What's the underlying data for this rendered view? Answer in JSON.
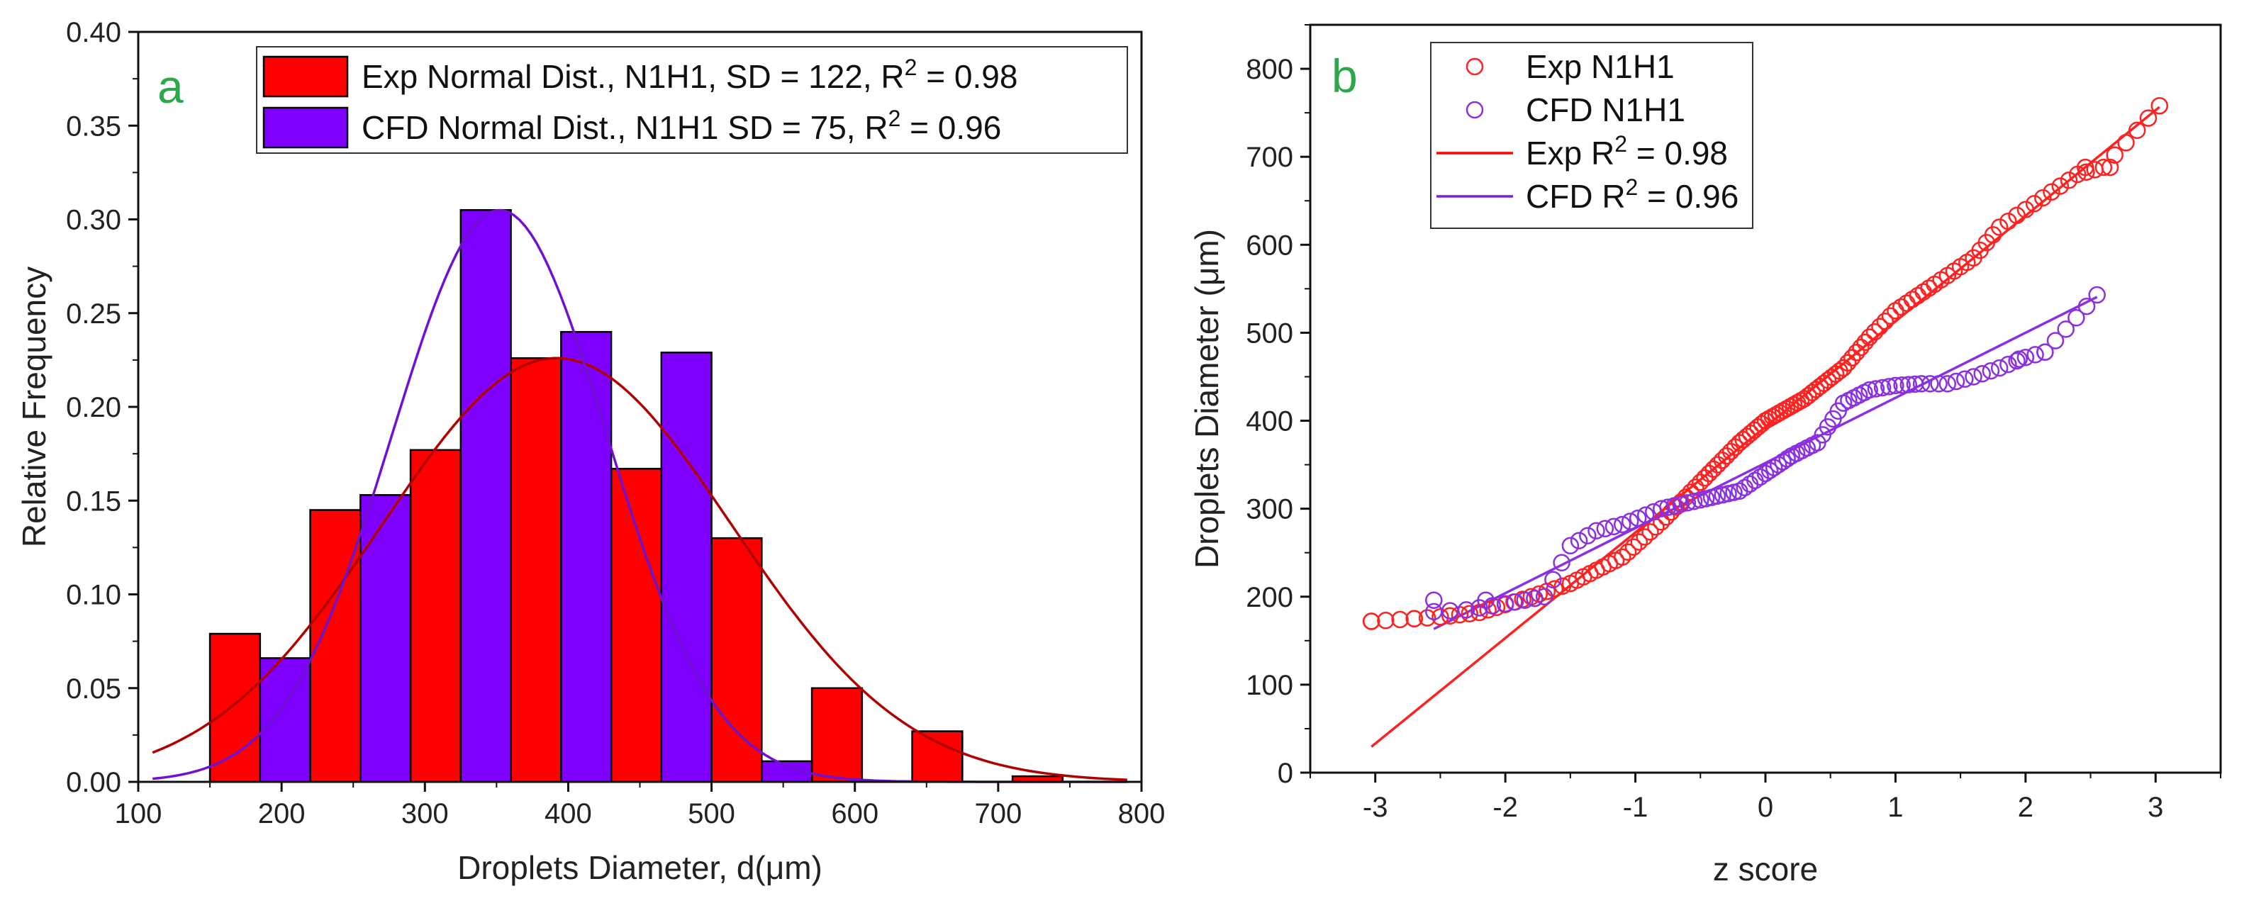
{
  "chart_data": [
    {
      "type": "bar",
      "panel_label": "a",
      "title": "",
      "xlabel": "Droplets Diameter, d(μm)",
      "ylabel": "Relative Frequency",
      "xlim": [
        100,
        800
      ],
      "ylim": [
        0,
        0.4
      ],
      "xticks": [
        "100",
        "200",
        "300",
        "400",
        "500",
        "600",
        "700",
        "800"
      ],
      "yticks": [
        "0.00",
        "0.05",
        "0.10",
        "0.15",
        "0.20",
        "0.25",
        "0.30",
        "0.35",
        "0.40"
      ],
      "bin_width": 35,
      "series": [
        {
          "name": "Exp",
          "color": "#ff0000",
          "bins": [
            {
              "start": 150,
              "value": 0.079
            },
            {
              "start": 220,
              "value": 0.145
            },
            {
              "start": 290,
              "value": 0.177
            },
            {
              "start": 360,
              "value": 0.226
            },
            {
              "start": 430,
              "value": 0.167
            },
            {
              "start": 500,
              "value": 0.13
            },
            {
              "start": 570,
              "value": 0.05
            },
            {
              "start": 640,
              "value": 0.027
            },
            {
              "start": 710,
              "value": 0.003
            }
          ]
        },
        {
          "name": "CFD",
          "color": "#8000ff",
          "bins": [
            {
              "start": 185,
              "value": 0.066
            },
            {
              "start": 255,
              "value": 0.153
            },
            {
              "start": 325,
              "value": 0.305
            },
            {
              "start": 395,
              "value": 0.24
            },
            {
              "start": 465,
              "value": 0.229
            },
            {
              "start": 535,
              "value": 0.011
            }
          ]
        }
      ],
      "fits": [
        {
          "name": "Exp normal fit",
          "color": "#b00000",
          "mean": 392,
          "sd": 122,
          "peak": 0.226
        },
        {
          "name": "CFD normal fit",
          "color": "#7010d0",
          "mean": 352,
          "sd": 75,
          "peak": 0.305
        }
      ],
      "legend": [
        {
          "label": "Exp Normal Dist., N1H1, SD = 122, R",
          "sup": "2",
          "tail": " = 0.98",
          "color": "#ff0000"
        },
        {
          "label": "CFD Normal Dist., N1H1 SD = 75, R",
          "sup": "2",
          "tail": " = 0.96",
          "color": "#8000ff"
        }
      ]
    },
    {
      "type": "scatter",
      "panel_label": "b",
      "title": "",
      "xlabel": "z score",
      "ylabel": "Droplets Diameter (μm)",
      "xlim": [
        -3.5,
        3.5
      ],
      "ylim": [
        0,
        850
      ],
      "xticks": [
        "-3",
        "-2",
        "-1",
        "0",
        "1",
        "2",
        "3"
      ],
      "yticks": [
        "0",
        "100",
        "200",
        "300",
        "400",
        "500",
        "600",
        "700",
        "800"
      ],
      "series": [
        {
          "name": "Exp N1H1",
          "color": "#ff2020",
          "marker": "open-circle",
          "line": {
            "slope": 120,
            "intercept": 393,
            "x_range": [
              -3.03,
              3.03
            ]
          },
          "curve": [
            [
              -3.03,
              172
            ],
            [
              -2.7,
              175
            ],
            [
              -2.5,
              177
            ],
            [
              -2.2,
              182
            ],
            [
              -1.8,
              200
            ],
            [
              -1.5,
              215
            ],
            [
              -1.1,
              245
            ],
            [
              -0.8,
              285
            ],
            [
              -0.5,
              330
            ],
            [
              -0.2,
              375
            ],
            [
              0.0,
              400
            ],
            [
              0.3,
              425
            ],
            [
              0.6,
              460
            ],
            [
              0.8,
              495
            ],
            [
              1.0,
              525
            ],
            [
              1.3,
              555
            ],
            [
              1.6,
              585
            ],
            [
              1.8,
              620
            ],
            [
              2.0,
              640
            ],
            [
              2.2,
              660
            ],
            [
              2.4,
              680
            ],
            [
              2.6,
              688
            ],
            [
              3.03,
              758
            ]
          ],
          "extra_points": [
            [
              -3.03,
              172
            ],
            [
              -2.7,
              175
            ],
            [
              2.46,
              688
            ],
            [
              2.65,
              688
            ],
            [
              3.03,
              758
            ]
          ]
        },
        {
          "name": "CFD N1H1",
          "color": "#8a30e0",
          "marker": "open-circle",
          "line": {
            "slope": 74,
            "intercept": 352,
            "x_range": [
              -2.55,
              2.55
            ]
          },
          "curve": [
            [
              -2.55,
              183
            ],
            [
              -2.3,
              185
            ],
            [
              -2.0,
              192
            ],
            [
              -1.7,
              200
            ],
            [
              -1.5,
              258
            ],
            [
              -1.3,
              275
            ],
            [
              -1.1,
              282
            ],
            [
              -0.8,
              300
            ],
            [
              -0.5,
              310
            ],
            [
              -0.2,
              320
            ],
            [
              0.0,
              340
            ],
            [
              0.2,
              360
            ],
            [
              0.4,
              375
            ],
            [
              0.6,
              420
            ],
            [
              0.8,
              435
            ],
            [
              1.0,
              440
            ],
            [
              1.2,
              442
            ],
            [
              1.4,
              442
            ],
            [
              1.6,
              450
            ],
            [
              1.8,
              460
            ],
            [
              2.0,
              472
            ],
            [
              2.15,
              478
            ],
            [
              2.55,
              543
            ]
          ],
          "extra_points": [
            [
              -2.55,
              196
            ],
            [
              -2.15,
              196
            ],
            [
              2.55,
              543
            ],
            [
              2.15,
              478
            ],
            [
              1.95,
              470
            ]
          ]
        }
      ],
      "legend": [
        {
          "label": "Exp N1H1",
          "kind": "marker",
          "color": "#ff2020"
        },
        {
          "label": "CFD N1H1",
          "kind": "marker",
          "color": "#8a30e0"
        },
        {
          "label": "Exp R",
          "sup": "2",
          "tail": " = 0.98",
          "kind": "line",
          "color": "#ff0000"
        },
        {
          "label": "CFD R",
          "sup": "2",
          "tail": " = 0.96",
          "kind": "line",
          "color": "#7a20d8"
        }
      ]
    }
  ]
}
